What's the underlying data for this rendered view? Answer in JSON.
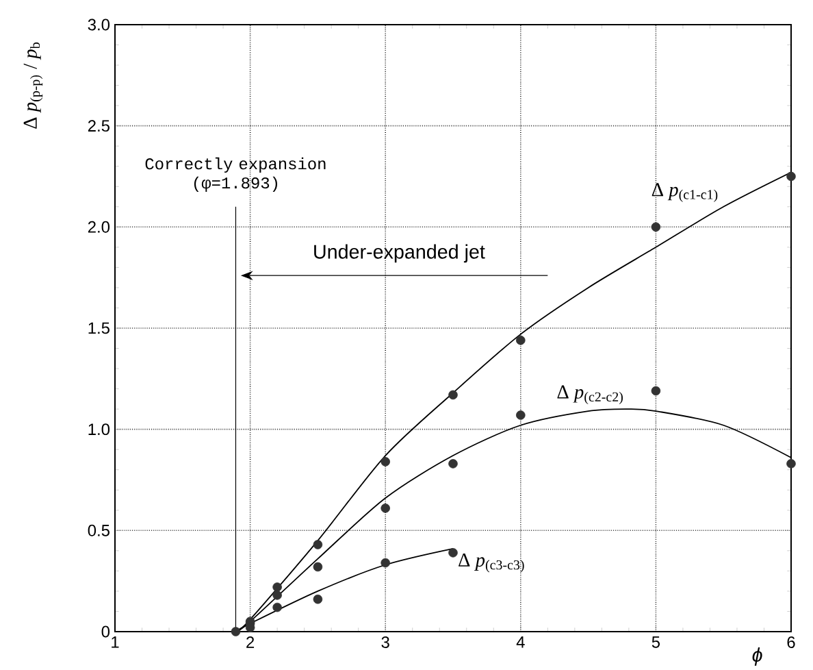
{
  "chart_data": {
    "type": "scatter",
    "xlabel": "ϕ",
    "ylabel": "Δ *p*$_{(p-p)}$ / *p*$_{b}$",
    "xlim": [
      1,
      6
    ],
    "ylim": [
      0,
      3
    ],
    "xticks": [
      1,
      2,
      3,
      4,
      5,
      6
    ],
    "yticks": [
      0,
      0.5,
      {
        "value": 1,
        "label": "1.0"
      },
      1.5,
      {
        "value": 2,
        "label": "2.0"
      },
      2.5,
      {
        "value": 3,
        "label": "3.0"
      }
    ],
    "grid": true,
    "series": [
      {
        "color": "#333333",
        "marker": "circle",
        "x": [
          1.893,
          2,
          2.2,
          2.5,
          3,
          3.5,
          4,
          5,
          6
        ],
        "values": [
          0,
          0.05,
          0.22,
          0.43,
          0.84,
          1.17,
          1.44,
          2.0,
          2.25
        ]
      },
      {
        "color": "#333333",
        "marker": "circle",
        "x": [
          2,
          2.2,
          2.5,
          3,
          3.5,
          4,
          5,
          6
        ],
        "values": [
          0.04,
          0.18,
          0.32,
          0.61,
          0.83,
          1.07,
          1.19,
          0.83
        ]
      },
      {
        "color": "#333333",
        "marker": "circle",
        "x": [
          2,
          2.2,
          2.5,
          3,
          3.5
        ],
        "values": [
          0.02,
          0.12,
          0.16,
          0.34,
          0.39
        ]
      },
      {
        "type": "line",
        "name": "Δ *p*$_{(c1-c1)}$",
        "color": "#000000",
        "marker": "none",
        "line_style": "solid",
        "x": [
          1.893,
          2,
          2.5,
          3,
          3.5,
          4,
          4.5,
          5,
          5.5,
          6
        ],
        "values": [
          0,
          0.06,
          0.45,
          0.87,
          1.18,
          1.47,
          1.7,
          1.9,
          2.1,
          2.27
        ]
      },
      {
        "type": "line",
        "name": "Δ *p*$_{(c2-c2)}$",
        "color": "#000000",
        "marker": "none",
        "line_style": "solid",
        "x": [
          1.893,
          2,
          2.5,
          3,
          3.5,
          4,
          4.5,
          4.8,
          5,
          5.5,
          6
        ],
        "values": [
          0,
          0.05,
          0.36,
          0.66,
          0.87,
          1.02,
          1.09,
          1.1,
          1.09,
          1.02,
          0.86
        ]
      },
      {
        "type": "line",
        "name": "Δ *p*$_{(c3-c3)}$",
        "color": "#000000",
        "marker": "none",
        "line_style": "solid",
        "x": [
          1.893,
          2,
          2.5,
          3,
          3.5
        ],
        "values": [
          0,
          0.04,
          0.2,
          0.33,
          0.41
        ]
      }
    ],
    "ref_lines": [
      {
        "axis": "x",
        "value": 1.893,
        "label": "Correctly expansion (φ=1.893)",
        "color": "#000000",
        "line_style": "solid"
      }
    ],
    "annotations": [
      "Under-expanded jet"
    ]
  }
}
